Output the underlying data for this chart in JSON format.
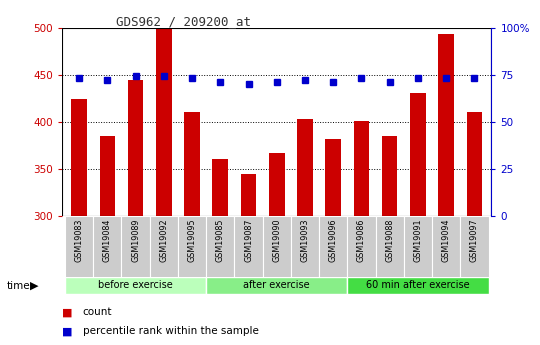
{
  "title": "GDS962 / 209200_at",
  "samples": [
    "GSM19083",
    "GSM19084",
    "GSM19089",
    "GSM19092",
    "GSM19095",
    "GSM19085",
    "GSM19087",
    "GSM19090",
    "GSM19093",
    "GSM19096",
    "GSM19086",
    "GSM19088",
    "GSM19091",
    "GSM19094",
    "GSM19097"
  ],
  "counts": [
    424,
    385,
    444,
    500,
    410,
    360,
    344,
    367,
    403,
    382,
    401,
    385,
    430,
    493,
    410
  ],
  "percentiles": [
    73,
    72,
    74,
    74,
    73,
    71,
    70,
    71,
    72,
    71,
    73,
    71,
    73,
    73,
    73
  ],
  "groups": [
    {
      "label": "before exercise",
      "start": 0,
      "end": 5,
      "color": "#bbffbb"
    },
    {
      "label": "after exercise",
      "start": 5,
      "end": 10,
      "color": "#88ee88"
    },
    {
      "label": "60 min after exercise",
      "start": 10,
      "end": 15,
      "color": "#44dd44"
    }
  ],
  "ylim": [
    300,
    500
  ],
  "yticks": [
    300,
    350,
    400,
    450,
    500
  ],
  "right_ylim": [
    0,
    100
  ],
  "right_yticks": [
    0,
    25,
    50,
    75,
    100
  ],
  "bar_color": "#cc0000",
  "dot_color": "#0000cc",
  "bar_bottom": 300,
  "title_color": "#333333",
  "axis_color_left": "#cc0000",
  "axis_color_right": "#0000cc",
  "grid_color": "#000000",
  "bg_color": "#ffffff",
  "sample_bg_color": "#cccccc"
}
